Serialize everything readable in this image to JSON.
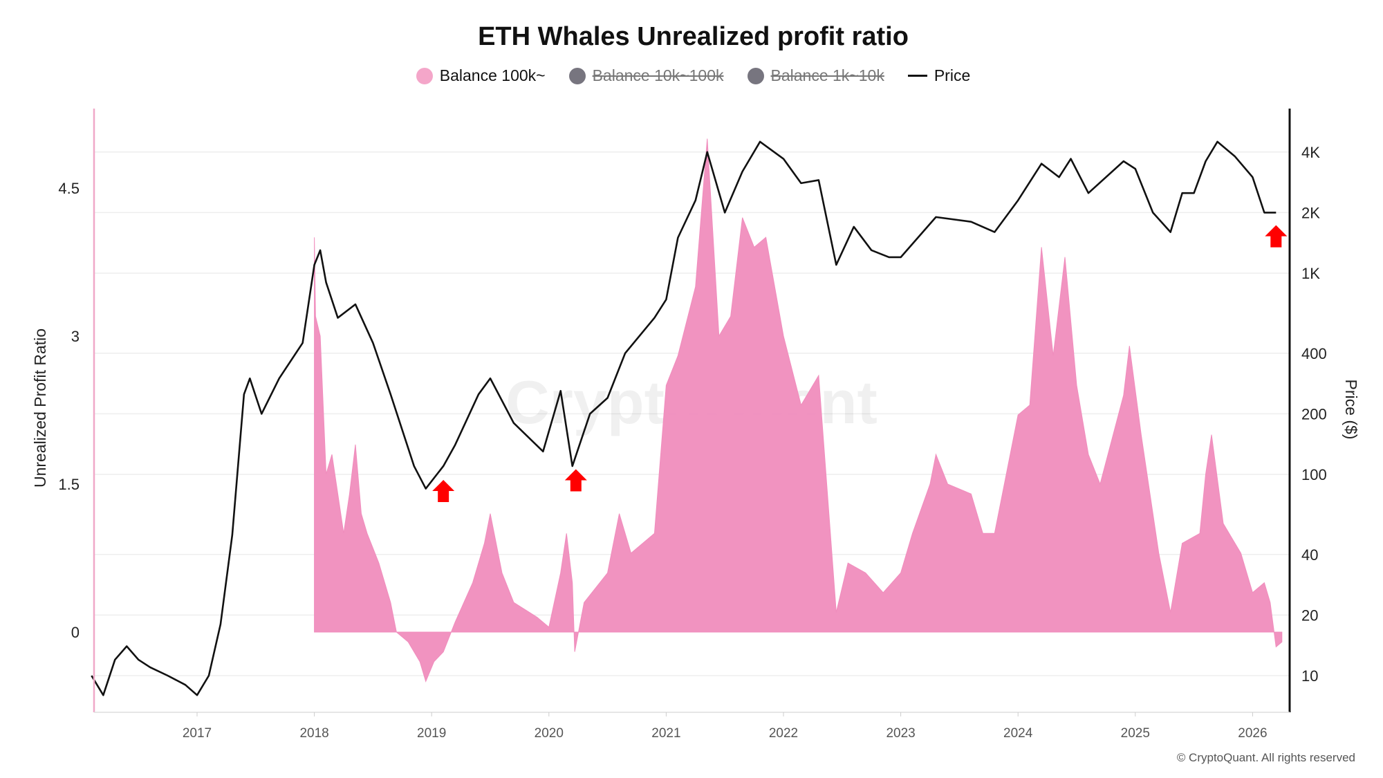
{
  "chart_data": {
    "type": "area+line",
    "title": "ETH Whales Unrealized profit ratio",
    "legend": [
      {
        "name": "Balance 100k~",
        "color": "#f4a6c9",
        "active": true
      },
      {
        "name": "Balance 10k~100k",
        "color": "#77757f",
        "active": false
      },
      {
        "name": "Balance 1k~10k",
        "color": "#77757f",
        "active": false
      },
      {
        "name": "Price",
        "color": "#111111",
        "active": true
      }
    ],
    "legend_placement": "top-center",
    "xlabel": "",
    "x_ticks": [
      "2017",
      "2018",
      "2019",
      "2020",
      "2021",
      "2022",
      "2023",
      "2024",
      "2025",
      "2026"
    ],
    "ylabel_left": "Unrealized Profit Ratio",
    "y_left_ticks": [
      "0",
      "1.5",
      "3",
      "4.5"
    ],
    "ylim_left": [
      -0.8,
      5.3
    ],
    "ylabel_right": "Price ($)",
    "y_right_scale": "log",
    "y_right_ticks": [
      "10",
      "20",
      "40",
      "100",
      "200",
      "400",
      "1K",
      "2K",
      "4K"
    ],
    "ylim_right": [
      6,
      5400
    ],
    "grid": "horizontal",
    "series": [
      {
        "name": "Balance 100k~",
        "axis": "left",
        "color": "#f08dbd",
        "x": [
          2018.0,
          2018.01,
          2018.05,
          2018.1,
          2018.15,
          2018.25,
          2018.3,
          2018.35,
          2018.4,
          2018.45,
          2018.55,
          2018.65,
          2018.7,
          2018.8,
          2018.9,
          2018.95,
          2019.02,
          2019.1,
          2019.2,
          2019.35,
          2019.45,
          2019.5,
          2019.6,
          2019.7,
          2019.9,
          2020.0,
          2020.1,
          2020.15,
          2020.2,
          2020.22,
          2020.3,
          2020.5,
          2020.6,
          2020.7,
          2020.9,
          2021.0,
          2021.1,
          2021.25,
          2021.35,
          2021.45,
          2021.55,
          2021.65,
          2021.75,
          2021.85,
          2022.0,
          2022.15,
          2022.3,
          2022.4,
          2022.45,
          2022.55,
          2022.7,
          2022.85,
          2023.0,
          2023.1,
          2023.25,
          2023.3,
          2023.4,
          2023.6,
          2023.7,
          2023.8,
          2023.9,
          2024.0,
          2024.1,
          2024.2,
          2024.3,
          2024.4,
          2024.5,
          2024.6,
          2024.7,
          2024.9,
          2024.95,
          2025.05,
          2025.2,
          2025.3,
          2025.4,
          2025.55,
          2025.6,
          2025.65,
          2025.75,
          2025.9,
          2026.0,
          2026.1,
          2026.15,
          2026.2,
          2026.25
        ],
        "values": [
          4.0,
          3.2,
          3.0,
          1.6,
          1.8,
          1.0,
          1.4,
          1.9,
          1.2,
          1.0,
          0.7,
          0.3,
          0.0,
          -0.1,
          -0.3,
          -0.5,
          -0.3,
          -0.2,
          0.1,
          0.5,
          0.9,
          1.2,
          0.6,
          0.3,
          0.15,
          0.05,
          0.6,
          1.0,
          0.5,
          -0.2,
          0.3,
          0.6,
          1.2,
          0.8,
          1.0,
          2.5,
          2.8,
          3.5,
          5.0,
          3.0,
          3.2,
          4.2,
          3.9,
          4.0,
          3.0,
          2.3,
          2.6,
          1.0,
          0.2,
          0.7,
          0.6,
          0.4,
          0.6,
          1.0,
          1.5,
          1.8,
          1.5,
          1.4,
          1.0,
          1.0,
          1.6,
          2.2,
          2.3,
          3.9,
          2.8,
          3.8,
          2.5,
          1.8,
          1.5,
          2.4,
          2.9,
          2.0,
          0.8,
          0.2,
          0.9,
          1.0,
          1.6,
          2.0,
          1.1,
          0.8,
          0.4,
          0.5,
          0.3,
          -0.15,
          -0.1
        ]
      },
      {
        "name": "Price",
        "axis": "right",
        "color": "#111111",
        "x": [
          2016.1,
          2016.2,
          2016.3,
          2016.4,
          2016.5,
          2016.6,
          2016.75,
          2016.9,
          2017.0,
          2017.1,
          2017.2,
          2017.3,
          2017.4,
          2017.45,
          2017.55,
          2017.7,
          2017.9,
          2018.0,
          2018.05,
          2018.1,
          2018.2,
          2018.35,
          2018.5,
          2018.65,
          2018.85,
          2018.95,
          2019.1,
          2019.2,
          2019.4,
          2019.5,
          2019.7,
          2019.95,
          2020.1,
          2020.2,
          2020.35,
          2020.5,
          2020.65,
          2020.9,
          2021.0,
          2021.1,
          2021.25,
          2021.35,
          2021.5,
          2021.65,
          2021.8,
          2022.0,
          2022.15,
          2022.3,
          2022.45,
          2022.6,
          2022.75,
          2022.9,
          2023.0,
          2023.3,
          2023.6,
          2023.8,
          2024.0,
          2024.2,
          2024.35,
          2024.45,
          2024.6,
          2024.9,
          2025.0,
          2025.15,
          2025.3,
          2025.4,
          2025.5,
          2025.6,
          2025.7,
          2025.85,
          2026.0,
          2026.1,
          2026.2
        ],
        "values": [
          10,
          8,
          12,
          14,
          12,
          11,
          10,
          9,
          8,
          10,
          18,
          50,
          250,
          300,
          200,
          300,
          450,
          1100,
          1300,
          900,
          600,
          700,
          450,
          250,
          110,
          85,
          110,
          140,
          250,
          300,
          180,
          130,
          260,
          110,
          200,
          240,
          400,
          600,
          740,
          1500,
          2300,
          4000,
          2000,
          3200,
          4500,
          3700,
          2800,
          2900,
          1100,
          1700,
          1300,
          1200,
          1200,
          1900,
          1800,
          1600,
          2300,
          3500,
          3000,
          3700,
          2500,
          3600,
          3300,
          2000,
          1600,
          2500,
          2500,
          3600,
          4500,
          3800,
          3000,
          2000,
          2000
        ]
      }
    ],
    "annotations": [
      {
        "type": "arrow-up",
        "color": "#ff0000",
        "x": 2019.1,
        "price": 84
      },
      {
        "type": "arrow-up",
        "color": "#ff0000",
        "x": 2020.23,
        "price": 95
      },
      {
        "type": "arrow-up",
        "color": "#ff0000",
        "x": 2026.2,
        "price": 1550
      }
    ],
    "watermark": "CryptoQuant",
    "footer": "© CryptoQuant. All rights reserved"
  }
}
